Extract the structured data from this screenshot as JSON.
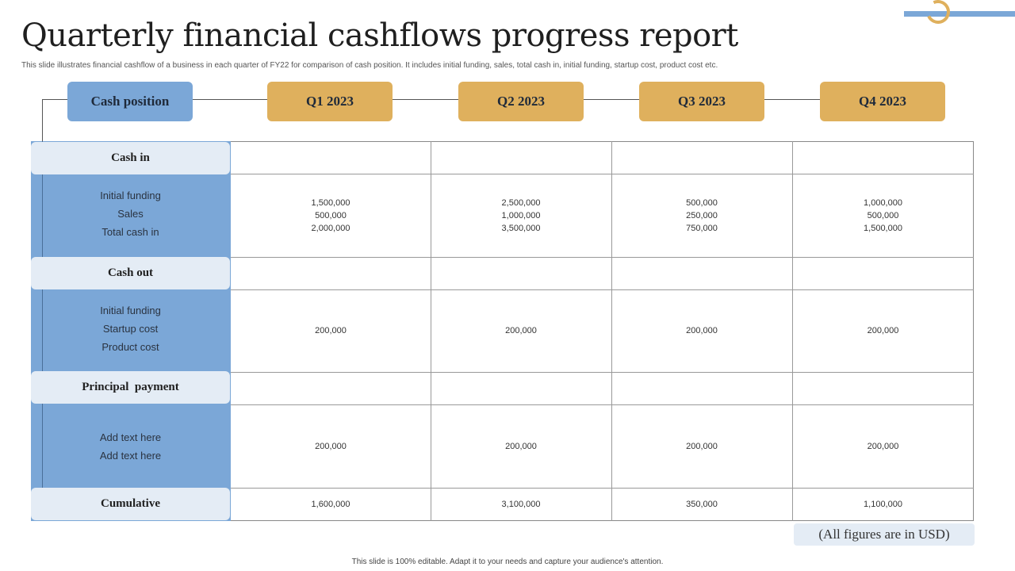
{
  "title": "Quarterly financial cashflows progress report",
  "subtitle": "This slide illustrates financial cashflow of a business in each quarter of FY22 for comparison of cash position. It includes initial funding, sales, total cash in, initial funding, startup cost, product cost etc.",
  "header": {
    "cash_position": "Cash position",
    "quarters": [
      "Q1 2023",
      "Q2 2023",
      "Q3 2023",
      "Q4 2023"
    ]
  },
  "sections": {
    "cash_in": {
      "label": "Cash in",
      "items": [
        "Initial funding",
        "Sales",
        "Total cash in"
      ],
      "values": [
        [
          "1,500,000",
          "500,000",
          "2,000,000"
        ],
        [
          "2,500,000",
          "1,000,000",
          "3,500,000"
        ],
        [
          "500,000",
          "250,000",
          "750,000"
        ],
        [
          "1,000,000",
          "500,000",
          "1,500,000"
        ]
      ]
    },
    "cash_out": {
      "label": "Cash out",
      "items": [
        "Initial funding",
        "Startup cost",
        "Product cost"
      ],
      "values": [
        "200,000",
        "200,000",
        "200,000",
        "200,000"
      ]
    },
    "principal_payment": {
      "label": "Principal  payment",
      "items": [
        "Add text here",
        "Add text here"
      ],
      "values": [
        "200,000",
        "200,000",
        "200,000",
        "200,000"
      ]
    },
    "cumulative": {
      "label": "Cumulative",
      "values": [
        "1,600,000",
        "3,100,000",
        "350,000",
        "1,100,000"
      ]
    }
  },
  "note": "(All figures are in USD)",
  "footer": "This slide is 100% editable. Adapt it to your needs and capture your audience's attention.",
  "colors": {
    "blue": "#7ba7d7",
    "gold": "#dfb05d",
    "pill": "#e4ecf5"
  }
}
